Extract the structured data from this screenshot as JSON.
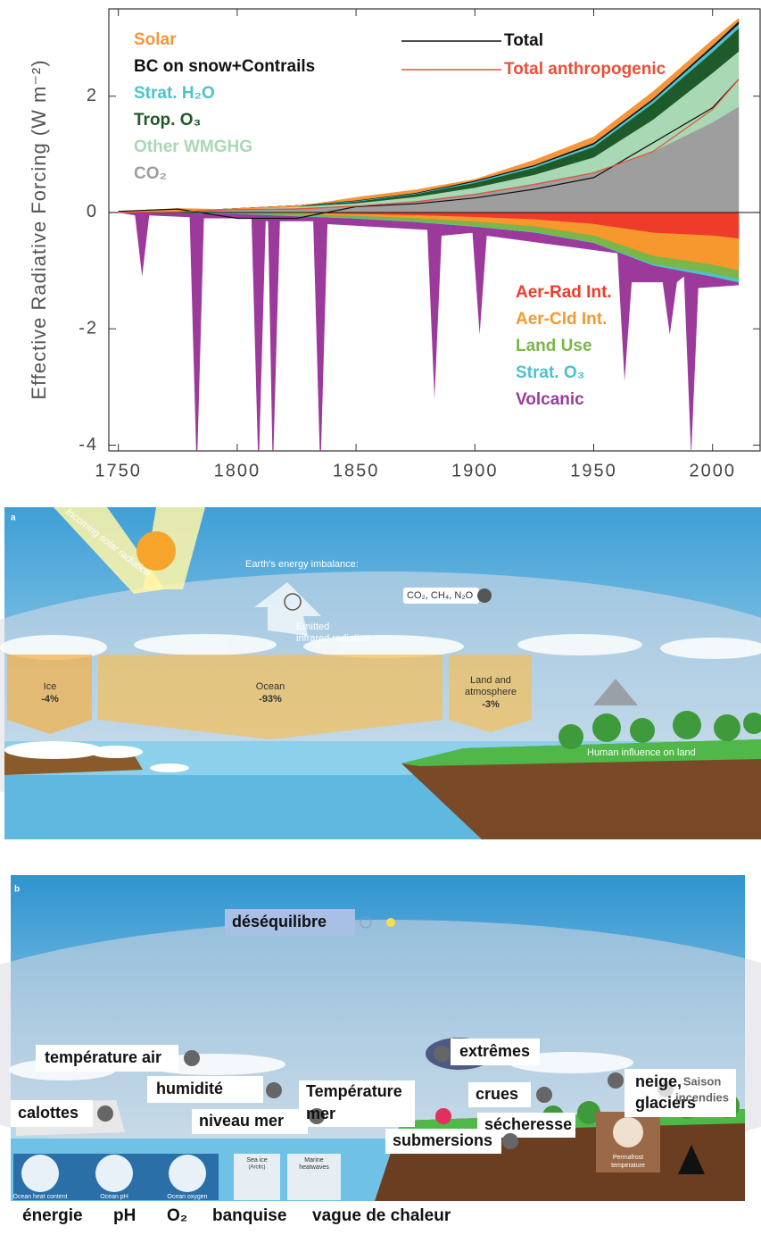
{
  "chart_data": {
    "type": "area",
    "y_label": "Effective Radiative Forcing (W m⁻²)",
    "x": [
      1750,
      1775,
      1800,
      1825,
      1850,
      1875,
      1900,
      1925,
      1950,
      1975,
      2000,
      2011
    ],
    "xlim": [
      1746,
      2020
    ],
    "xticks": [
      1750,
      1800,
      1850,
      1900,
      1950,
      2000
    ],
    "ylim": [
      -4.1,
      3.5
    ],
    "yticks": [
      -4,
      -2,
      0,
      2
    ],
    "series": [
      {
        "name": "Solar",
        "color": "#f5953a",
        "stack": "positive",
        "style": "area",
        "values": [
          0.02,
          0.05,
          -0.02,
          -0.02,
          0.05,
          0.05,
          0.02,
          0.08,
          0.1,
          0.12,
          0.1,
          0.05
        ]
      },
      {
        "name": "BC on snow+Contrails",
        "color": "#111111",
        "stack": "positive",
        "style": "area",
        "values": [
          0,
          0,
          0,
          0,
          0.01,
          0.01,
          0.02,
          0.02,
          0.03,
          0.03,
          0.04,
          0.05
        ]
      },
      {
        "name": "Strat. H₂O",
        "color": "#4cc3cc",
        "stack": "positive",
        "style": "area",
        "values": [
          0,
          0,
          0,
          0,
          0.01,
          0.01,
          0.02,
          0.03,
          0.04,
          0.05,
          0.07,
          0.07
        ]
      },
      {
        "name": "Trop. O₃",
        "color": "#1e5a2a",
        "stack": "positive",
        "style": "area",
        "values": [
          0,
          0,
          0.01,
          0.02,
          0.03,
          0.05,
          0.08,
          0.12,
          0.18,
          0.28,
          0.36,
          0.4
        ]
      },
      {
        "name": "Other WMGHG",
        "color": "#a9d8b4",
        "stack": "positive",
        "style": "area",
        "values": [
          0,
          0,
          0.01,
          0.02,
          0.04,
          0.07,
          0.1,
          0.15,
          0.25,
          0.55,
          0.85,
          0.95
        ]
      },
      {
        "name": "CO₂",
        "color": "#9e9e9e",
        "stack": "positive",
        "style": "area",
        "values": [
          0,
          0.02,
          0.05,
          0.08,
          0.12,
          0.2,
          0.33,
          0.5,
          0.7,
          1.05,
          1.55,
          1.82
        ]
      },
      {
        "name": "Aer-Rad Int.",
        "color": "#ee3b2a",
        "stack": "negative",
        "style": "area",
        "values": [
          0,
          0,
          0,
          -0.01,
          -0.03,
          -0.05,
          -0.08,
          -0.12,
          -0.2,
          -0.35,
          -0.4,
          -0.45
        ]
      },
      {
        "name": "Aer-Cld Int.",
        "color": "#f6982d",
        "stack": "negative",
        "style": "area",
        "values": [
          0,
          0,
          0,
          -0.02,
          -0.03,
          -0.05,
          -0.08,
          -0.12,
          -0.2,
          -0.4,
          -0.5,
          -0.55
        ]
      },
      {
        "name": "Land Use",
        "color": "#7ab648",
        "stack": "negative",
        "style": "area",
        "values": [
          0,
          -0.01,
          -0.02,
          -0.03,
          -0.04,
          -0.06,
          -0.08,
          -0.1,
          -0.12,
          -0.14,
          -0.15,
          -0.15
        ]
      },
      {
        "name": "Strat. O₃",
        "color": "#4cc3cc",
        "stack": "negative",
        "style": "area",
        "values": [
          0,
          0,
          0,
          0,
          0,
          0,
          0,
          0,
          0,
          -0.02,
          -0.05,
          -0.05
        ]
      },
      {
        "name": "Volcanic",
        "color": "#9c3a9c",
        "stack": "none",
        "style": "area",
        "x": [
          1750,
          1757,
          1760,
          1763,
          1780,
          1783,
          1786,
          1806,
          1809,
          1812,
          1813,
          1815,
          1818,
          1832,
          1835,
          1838,
          1880,
          1883,
          1886,
          1899,
          1902,
          1905,
          1960,
          1963,
          1966,
          1979,
          1982,
          1985,
          1988,
          1991,
          1994,
          2011
        ],
        "values": [
          0,
          -0.05,
          -1.1,
          -0.05,
          -0.08,
          -4.5,
          -0.1,
          -0.1,
          -4.5,
          -0.15,
          -0.15,
          -4.5,
          -0.15,
          -0.15,
          -4.5,
          -0.2,
          -0.3,
          -3.2,
          -0.4,
          -0.35,
          -2.1,
          -0.4,
          -0.7,
          -2.9,
          -1.2,
          -1.2,
          -2.1,
          -1.2,
          -1.1,
          -4.2,
          -1.3,
          -1.25
        ]
      },
      {
        "name": "Total",
        "color": "#111111",
        "stack": "none",
        "style": "line",
        "values": [
          0.02,
          0.06,
          -0.1,
          -0.1,
          0.1,
          0.15,
          0.25,
          0.4,
          0.6,
          1.2,
          1.8,
          2.29
        ]
      },
      {
        "name": "Total anthropogenic",
        "color": "#e8503a",
        "stack": "none",
        "style": "line",
        "values": [
          0,
          0.01,
          0.05,
          0.06,
          0.11,
          0.18,
          0.31,
          0.48,
          0.68,
          1.05,
          1.77,
          2.29
        ]
      }
    ]
  },
  "panel_a": {
    "label": "a",
    "incoming": "Incoming solar radiation",
    "imbalance": "Earth's energy imbalance:",
    "emitted": [
      "Emitted",
      "infrared radiation"
    ],
    "gases": "CO₂, CH₄, N₂O",
    "ice": {
      "name": "Ice",
      "share": "-4%"
    },
    "ocean": {
      "name": "Ocean",
      "share": "-93%"
    },
    "land": {
      "name": [
        "Land and",
        "atmosphere"
      ],
      "share": "-3%"
    },
    "human": "Human influence on land"
  },
  "panel_b": {
    "label": "b",
    "imbalance": "déséquilibre",
    "air_temperature": "température air",
    "humidity": "humidité",
    "ice_caps": "calottes",
    "sea_temperature": [
      "Température",
      "mer"
    ],
    "extremes": "extrêmes",
    "floods": "crues",
    "drought": "sécheresse",
    "snow": [
      "neige,",
      "glaciers"
    ],
    "fire_season": [
      "Saison",
      "incendies"
    ],
    "sea_level": "niveau mer",
    "submersion": "submersions",
    "sea_ice": [
      "Sea ice",
      "(Arctic)"
    ],
    "heatwaves": [
      "Marine",
      "heatwaves"
    ],
    "permafrost": [
      "Permafrost",
      "temperature"
    ],
    "ocean_icons": [
      "Ocean heat content",
      "Ocean pH",
      "Ocean oxygen"
    ],
    "captions": [
      "énergie",
      "pH",
      "O₂",
      "banquise",
      "vague de chaleur"
    ]
  }
}
